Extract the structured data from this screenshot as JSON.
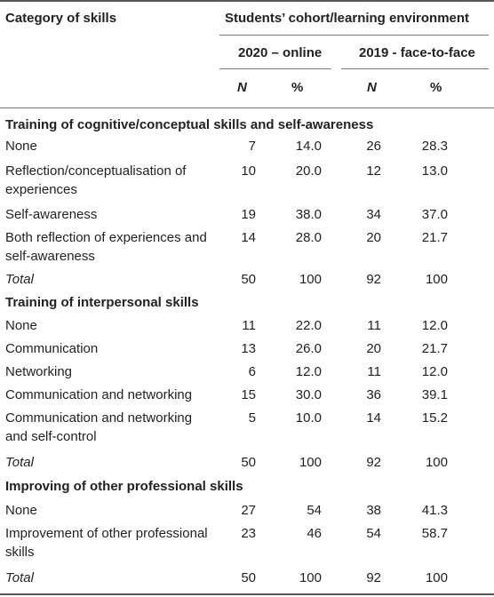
{
  "table": {
    "header": {
      "category": "Category of skills",
      "cohort": "Students’ cohort/learning environment",
      "group_2020": "2020 – online",
      "group_2019": "2019 - face-to-face",
      "n": "N",
      "pct": "%"
    },
    "sections": [
      {
        "title": "Training of cognitive/conceptual skills and self-awareness",
        "rows": [
          {
            "label": "None",
            "n2020": "7",
            "p2020": "14.0",
            "n2019": "26",
            "p2019": "28.3"
          },
          {
            "label": "Reflection/conceptualisation of experiences",
            "n2020": "10",
            "p2020": "20.0",
            "n2019": "12",
            "p2019": "13.0"
          },
          {
            "label": "Self-awareness",
            "n2020": "19",
            "p2020": "38.0",
            "n2019": "34",
            "p2019": "37.0"
          },
          {
            "label": "Both reflection of experiences and self-awareness",
            "n2020": "14",
            "p2020": "28.0",
            "n2019": "20",
            "p2019": "21.7"
          },
          {
            "label": "Total",
            "n2020": "50",
            "p2020": "100",
            "n2019": "92",
            "p2019": "100"
          }
        ]
      },
      {
        "title": "Training of interpersonal skills",
        "rows": [
          {
            "label": "None",
            "n2020": "11",
            "p2020": "22.0",
            "n2019": "11",
            "p2019": "12.0"
          },
          {
            "label": "Communication",
            "n2020": "13",
            "p2020": "26.0",
            "n2019": "20",
            "p2019": "21.7"
          },
          {
            "label": "Networking",
            "n2020": "6",
            "p2020": "12.0",
            "n2019": "11",
            "p2019": "12.0"
          },
          {
            "label": "Communication and networking",
            "n2020": "15",
            "p2020": "30.0",
            "n2019": "36",
            "p2019": "39.1"
          },
          {
            "label": "Communication and networking and self-control",
            "n2020": "5",
            "p2020": "10.0",
            "n2019": "14",
            "p2019": "15.2"
          },
          {
            "label": "Total",
            "n2020": "50",
            "p2020": "100",
            "n2019": "92",
            "p2019": "100"
          }
        ]
      },
      {
        "title": "Improving of other professional skills",
        "rows": [
          {
            "label": "None",
            "n2020": "27",
            "p2020": "54",
            "n2019": "38",
            "p2019": "41.3"
          },
          {
            "label": "Improvement of other professional skills",
            "n2020": "23",
            "p2020": "46",
            "n2019": "54",
            "p2019": "58.7"
          },
          {
            "label": "Total",
            "n2020": "50",
            "p2020": "100",
            "n2019": "92",
            "p2019": "100"
          }
        ]
      }
    ]
  }
}
